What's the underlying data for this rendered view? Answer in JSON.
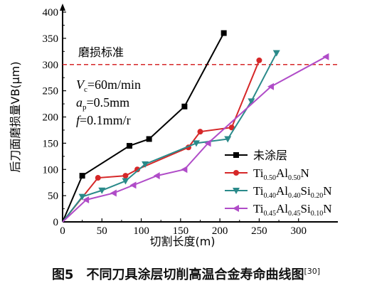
{
  "chart_data": {
    "type": "line",
    "xlabel": "切割长度(m)",
    "ylabel": "后刀面磨损量VB(μm)",
    "xlim": [
      0,
      350
    ],
    "ylim": [
      0,
      400
    ],
    "xticks": [
      0,
      50,
      100,
      150,
      200,
      250,
      300
    ],
    "yticks": [
      0,
      50,
      100,
      150,
      200,
      250,
      300,
      350,
      400
    ],
    "grid": false,
    "legend_position": "bottom-right",
    "reference_line": {
      "y": 300,
      "label": "磨损标准",
      "color": "#d62728",
      "style": "dashed"
    },
    "conditions": [
      "V_c=60m/min",
      "a_p=0.5mm",
      "f=0.1mm/r"
    ],
    "series": [
      {
        "name": "未涂层",
        "color": "#000000",
        "marker": "square",
        "x": [
          0,
          25,
          85,
          110,
          155,
          205
        ],
        "y": [
          0,
          88,
          145,
          158,
          220,
          360
        ]
      },
      {
        "name": "Ti0.50Al0.50N",
        "color": "#d62728",
        "marker": "circle",
        "x": [
          0,
          45,
          80,
          95,
          160,
          175,
          215,
          250
        ],
        "y": [
          0,
          84,
          88,
          100,
          142,
          172,
          180,
          308
        ]
      },
      {
        "name": "Ti0.40Al0.40Si0.20N",
        "color": "#2a8a8a",
        "marker": "triangle-down",
        "x": [
          0,
          25,
          50,
          80,
          105,
          170,
          210,
          240,
          272
        ],
        "y": [
          0,
          48,
          60,
          78,
          110,
          150,
          158,
          230,
          322
        ]
      },
      {
        "name": "Ti0.45Al0.45Si0.10N",
        "color": "#b04cc8",
        "marker": "triangle-left",
        "x": [
          0,
          30,
          65,
          90,
          120,
          155,
          185,
          265,
          335
        ],
        "y": [
          0,
          42,
          55,
          70,
          88,
          100,
          150,
          258,
          315
        ]
      }
    ]
  },
  "caption": {
    "text": "图5　不同刀具涂层切削高温合金寿命曲线图",
    "ref": "[30]"
  }
}
